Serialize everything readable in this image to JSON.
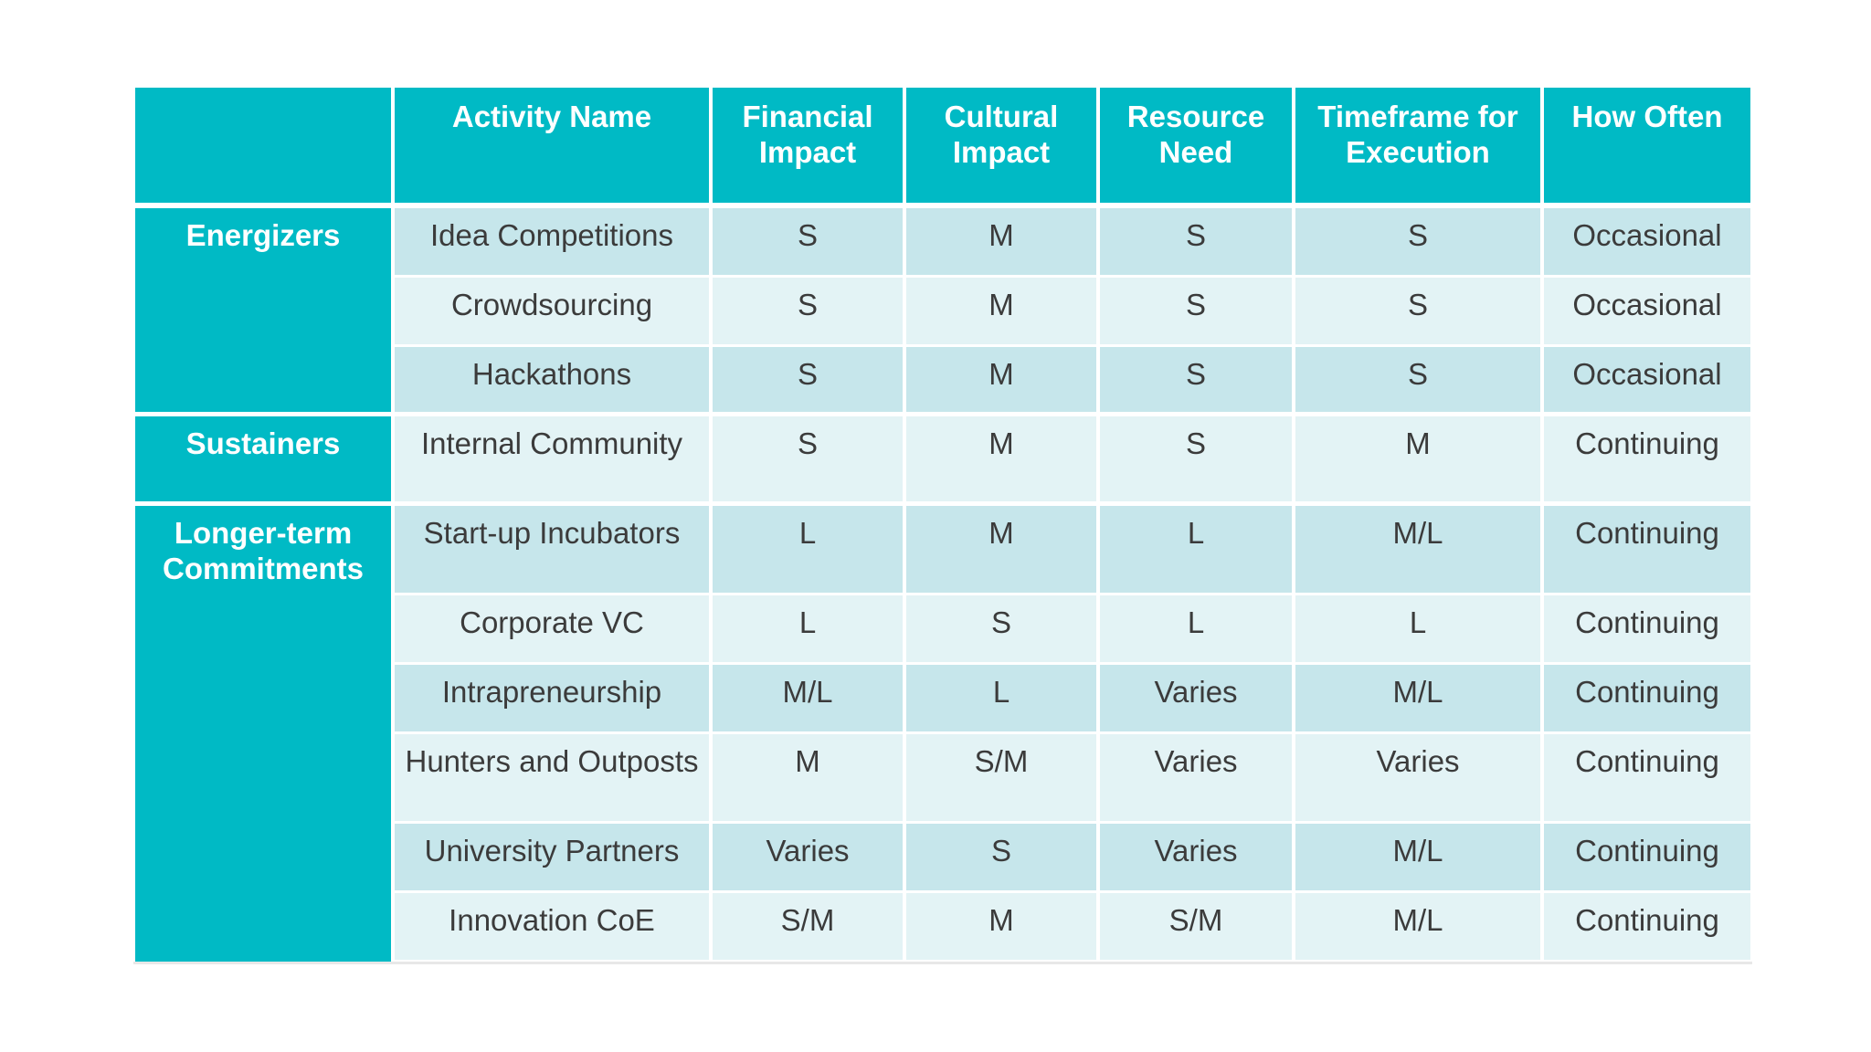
{
  "table": {
    "headers": [
      "",
      "Activity Name",
      "Financial Impact",
      "Cultural Impact",
      "Resource Need",
      "Timeframe for Execution",
      "How Often"
    ],
    "groups": [
      {
        "name": "Energizers",
        "rows": [
          {
            "activity": "Idea Competitions",
            "financial": "S",
            "cultural": "M",
            "resource": "S",
            "timeframe": "S",
            "how_often": "Occasional"
          },
          {
            "activity": "Crowdsourcing",
            "financial": "S",
            "cultural": "M",
            "resource": "S",
            "timeframe": "S",
            "how_often": "Occasional"
          },
          {
            "activity": "Hackathons",
            "financial": "S",
            "cultural": "M",
            "resource": "S",
            "timeframe": "S",
            "how_often": "Occasional"
          }
        ]
      },
      {
        "name": "Sustainers",
        "rows": [
          {
            "activity": "Internal Community",
            "financial": "S",
            "cultural": "M",
            "resource": "S",
            "timeframe": "M",
            "how_often": "Continuing"
          }
        ]
      },
      {
        "name": "Longer-term Commitments",
        "rows": [
          {
            "activity": "Start-up Incubators",
            "financial": "L",
            "cultural": "M",
            "resource": "L",
            "timeframe": "M/L",
            "how_often": "Continuing"
          },
          {
            "activity": "Corporate VC",
            "financial": "L",
            "cultural": "S",
            "resource": "L",
            "timeframe": "L",
            "how_often": "Continuing"
          },
          {
            "activity": "Intrapreneurship",
            "financial": "M/L",
            "cultural": "L",
            "resource": "Varies",
            "timeframe": "M/L",
            "how_often": "Continuing"
          },
          {
            "activity": "Hunters and Outposts",
            "financial": "M",
            "cultural": "S/M",
            "resource": "Varies",
            "timeframe": "Varies",
            "how_often": "Continuing"
          },
          {
            "activity": "University Partners",
            "financial": "Varies",
            "cultural": "S",
            "resource": "Varies",
            "timeframe": "M/L",
            "how_often": "Continuing"
          },
          {
            "activity": "Innovation CoE",
            "financial": "S/M",
            "cultural": "M",
            "resource": "S/M",
            "timeframe": "M/L",
            "how_often": "Continuing"
          }
        ]
      }
    ]
  },
  "colors": {
    "header_bg": "#00bac5",
    "row_dark": "#c6e6eb",
    "row_light": "#e3f3f5",
    "text": "#3b3b3b",
    "header_text": "#ffffff"
  }
}
